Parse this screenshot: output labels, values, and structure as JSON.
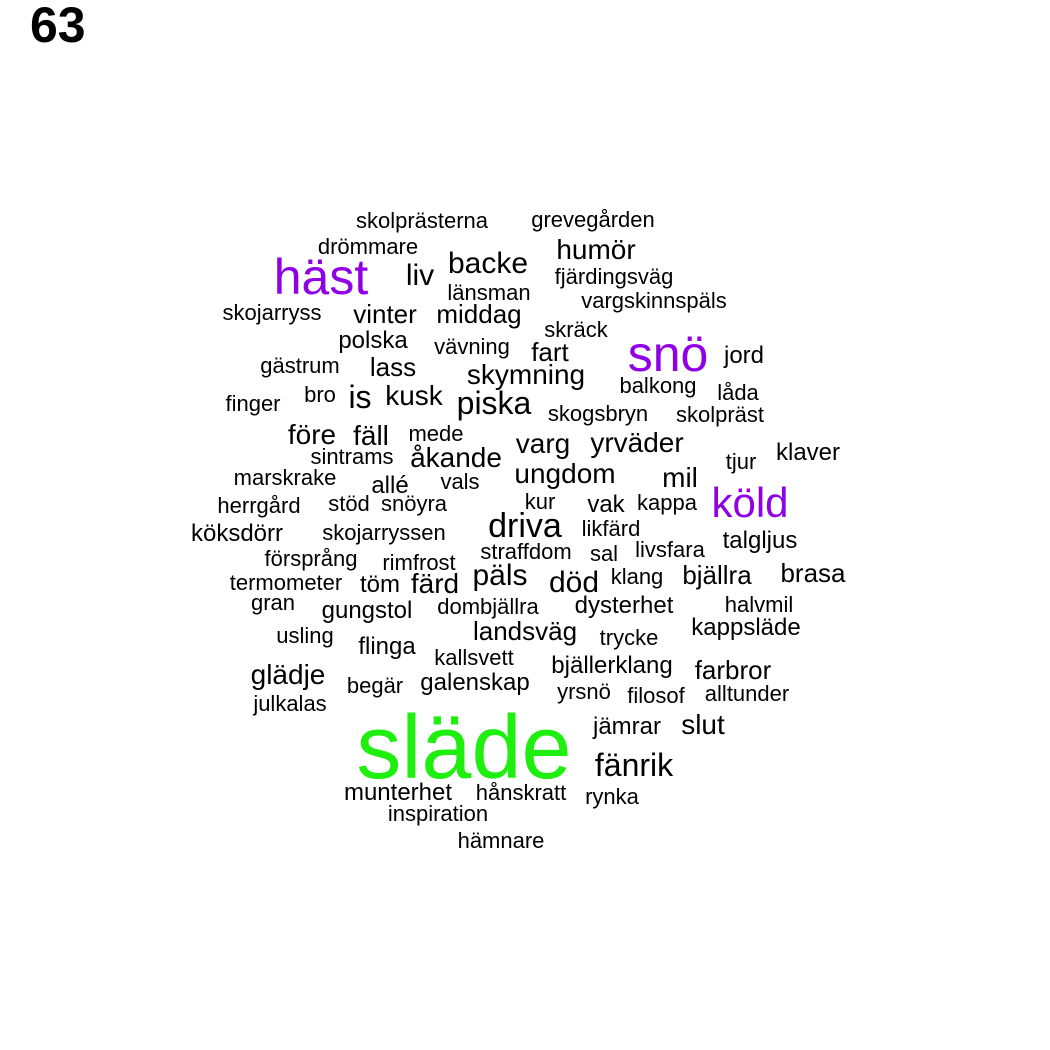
{
  "page_number": "63",
  "colors": {
    "default": "#000000",
    "purple": "#8f00e6",
    "green": "#1fef0f"
  },
  "words": [
    "skolprästerna",
    "grevegården",
    "drömmare",
    "humör",
    "häst",
    "liv",
    "backe",
    "fjärdingsväg",
    "länsman",
    "vargskinnspäls",
    "skojarryss",
    "vinter",
    "middag",
    "skräck",
    "polska",
    "vävning",
    "fart",
    "snö",
    "jord",
    "gästrum",
    "lass",
    "skymning",
    "balkong",
    "bro",
    "is",
    "kusk",
    "låda",
    "finger",
    "piska",
    "skogsbryn",
    "skolpräst",
    "före",
    "fäll",
    "mede",
    "varg",
    "yrväder",
    "sintrams",
    "åkande",
    "klaver",
    "tjur",
    "marskrake",
    "ungdom",
    "allé",
    "vals",
    "mil",
    "köld",
    "herrgård",
    "stöd",
    "snöyra",
    "kur",
    "vak",
    "kappa",
    "köksdörr",
    "skojarryssen",
    "driva",
    "likfärd",
    "talgljus",
    "försprång",
    "straffdom",
    "sal",
    "livsfara",
    "rimfrost",
    "termometer",
    "töm",
    "färd",
    "päls",
    "död",
    "klang",
    "bjällra",
    "brasa",
    "gran",
    "gungstol",
    "dombjällra",
    "dysterhet",
    "halvmil",
    "usling",
    "landsväg",
    "trycke",
    "kappsläde",
    "flinga",
    "kallsvett",
    "glädje",
    "bjällerklang",
    "farbror",
    "begär",
    "galenskap",
    "yrsnö",
    "filosof",
    "alltunder",
    "julkalas",
    "jämrar",
    "slut",
    "släde",
    "fänrik",
    "munterhet",
    "hånskratt",
    "rynka",
    "inspiration",
    "hämnare"
  ]
}
